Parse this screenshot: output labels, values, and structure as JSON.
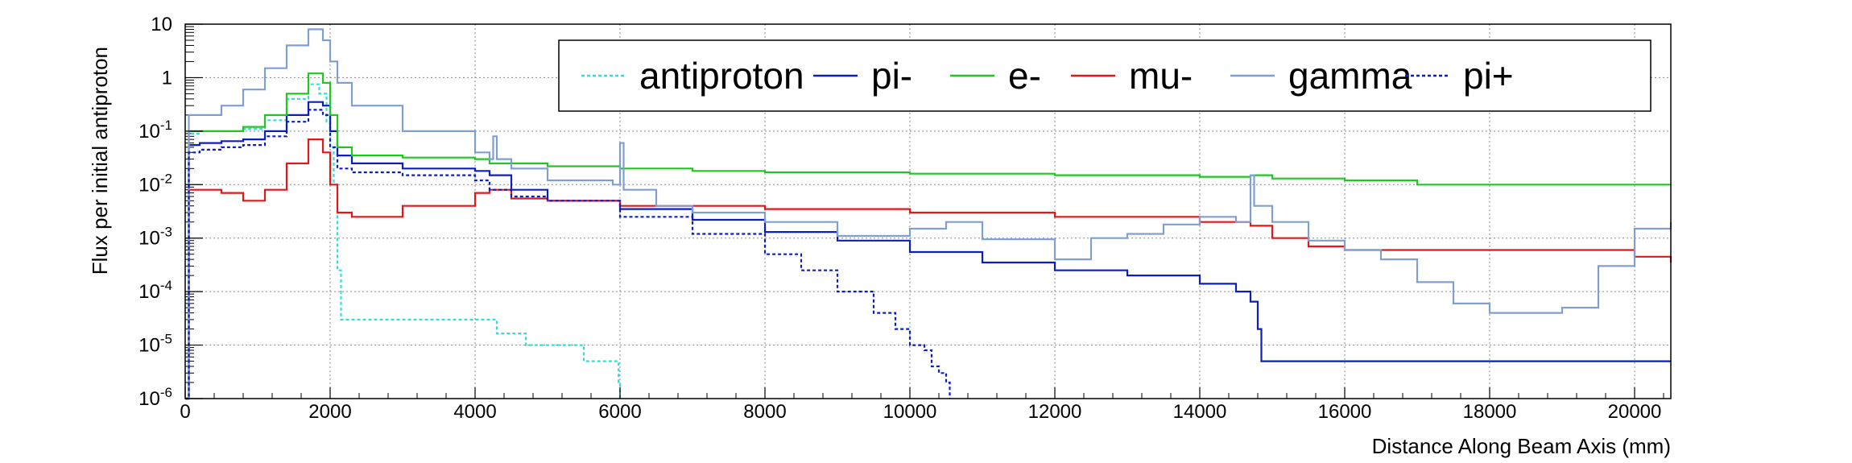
{
  "chart_data": {
    "type": "line",
    "xlabel": "Distance Along Beam Axis (mm)",
    "ylabel": "Flux per initial antiproton",
    "xlim": [
      0,
      20500
    ],
    "ylim": [
      1e-06,
      10
    ],
    "y_scale": "log",
    "grid": true,
    "legend_position": "top-right",
    "x_ticks": [
      0,
      2000,
      4000,
      6000,
      8000,
      10000,
      12000,
      14000,
      16000,
      18000,
      20000
    ],
    "x_tick_labels": [
      "0",
      "2000",
      "4000",
      "6000",
      "8000",
      "10000",
      "12000",
      "14000",
      "16000",
      "18000",
      "20000"
    ],
    "y_ticks": [
      {
        "value": 10,
        "base": "10",
        "exp": ""
      },
      {
        "value": 1,
        "base": "1",
        "exp": ""
      },
      {
        "value": 0.1,
        "base": "10",
        "exp": "-1"
      },
      {
        "value": 0.01,
        "base": "10",
        "exp": "-2"
      },
      {
        "value": 0.001,
        "base": "10",
        "exp": "-3"
      },
      {
        "value": 0.0001,
        "base": "10",
        "exp": "-4"
      },
      {
        "value": 1e-05,
        "base": "10",
        "exp": "-5"
      },
      {
        "value": 1e-06,
        "base": "10",
        "exp": "-6"
      }
    ],
    "series": [
      {
        "name": "antiproton",
        "color": "#33dddd",
        "dash": "dotted",
        "x": [
          0,
          50,
          200,
          500,
          800,
          1100,
          1400,
          1700,
          1850,
          1950,
          2000,
          2050,
          2100,
          2150,
          2200,
          4200,
          4300,
          4700,
          5500,
          5980,
          6000
        ],
        "y": [
          1e-06,
          0.09,
          0.1,
          0.1,
          0.11,
          0.16,
          0.4,
          0.75,
          0.5,
          0.15,
          0.05,
          0.01,
          0.00025,
          3e-05,
          3e-05,
          3e-05,
          1.65e-05,
          1e-05,
          5e-06,
          2e-06,
          1e-06
        ]
      },
      {
        "name": "pi-",
        "color": "#0b1fc0",
        "dash": "solid",
        "x": [
          0,
          50,
          200,
          500,
          800,
          1100,
          1400,
          1700,
          1900,
          2000,
          2100,
          2300,
          3000,
          4000,
          4200,
          4500,
          5000,
          6000,
          7000,
          8000,
          9000,
          10000,
          11000,
          12000,
          13000,
          14000,
          14500,
          14700,
          14800,
          14850,
          16000,
          18000,
          20500
        ],
        "y": [
          1e-06,
          0.055,
          0.06,
          0.065,
          0.07,
          0.1,
          0.2,
          0.35,
          0.3,
          0.1,
          0.035,
          0.025,
          0.02,
          0.018,
          0.015,
          0.008,
          0.005,
          0.0035,
          0.0022,
          0.0013,
          0.0009,
          0.00055,
          0.00035,
          0.00025,
          0.0002,
          0.00014,
          0.0001,
          6.5e-05,
          2e-05,
          5e-06,
          5e-06,
          5e-06,
          5e-06
        ]
      },
      {
        "name": "e-",
        "color": "#1ec81e",
        "dash": "solid",
        "x": [
          0,
          50,
          200,
          500,
          800,
          1100,
          1400,
          1700,
          1900,
          2000,
          2100,
          2300,
          3000,
          4000,
          4200,
          5000,
          6000,
          7000,
          8000,
          10000,
          12000,
          14000,
          14700,
          15000,
          16000,
          17000,
          18000,
          20500
        ],
        "y": [
          1e-06,
          0.1,
          0.1,
          0.1,
          0.12,
          0.2,
          0.5,
          1.2,
          0.8,
          0.2,
          0.05,
          0.035,
          0.032,
          0.03,
          0.025,
          0.022,
          0.02,
          0.018,
          0.017,
          0.016,
          0.015,
          0.014,
          0.015,
          0.013,
          0.012,
          0.01,
          0.01,
          0.01
        ]
      },
      {
        "name": "mu-",
        "color": "#e01818",
        "dash": "solid",
        "x": [
          0,
          50,
          200,
          500,
          800,
          1100,
          1400,
          1700,
          1900,
          2000,
          2100,
          2300,
          3000,
          4000,
          4200,
          4500,
          5000,
          6000,
          8000,
          10000,
          12000,
          14000,
          14700,
          15000,
          15500,
          16000,
          17000,
          18000,
          19500,
          20000,
          20500
        ],
        "y": [
          1e-06,
          0.008,
          0.008,
          0.007,
          0.005,
          0.008,
          0.025,
          0.07,
          0.04,
          0.01,
          0.003,
          0.0025,
          0.004,
          0.007,
          0.008,
          0.0055,
          0.005,
          0.004,
          0.0035,
          0.003,
          0.0025,
          0.002,
          0.0017,
          0.001,
          0.0007,
          0.0006,
          0.0006,
          0.0006,
          0.0006,
          0.00045,
          0.00035
        ]
      },
      {
        "name": "gamma",
        "color": "#7f9fd0",
        "dash": "solid",
        "x": [
          0,
          50,
          200,
          500,
          800,
          1100,
          1400,
          1700,
          1900,
          2000,
          2100,
          2300,
          3000,
          4000,
          4200,
          4250,
          4300,
          4500,
          5000,
          5900,
          6000,
          6050,
          6500,
          7000,
          8000,
          9000,
          10000,
          10500,
          11000,
          12000,
          12500,
          13000,
          13500,
          14000,
          14500,
          14700,
          14750,
          15000,
          15500,
          16000,
          16500,
          17000,
          17500,
          18000,
          18500,
          19000,
          19500,
          20000,
          20500
        ],
        "y": [
          1e-06,
          0.2,
          0.2,
          0.3,
          0.6,
          1.5,
          4,
          8,
          5,
          2,
          0.8,
          0.3,
          0.1,
          0.04,
          0.03,
          0.08,
          0.03,
          0.02,
          0.012,
          0.01,
          0.06,
          0.008,
          0.004,
          0.003,
          0.002,
          0.0011,
          0.0015,
          0.002,
          0.00095,
          0.0004,
          0.001,
          0.0012,
          0.0018,
          0.0025,
          0.002,
          0.015,
          0.004,
          0.002,
          0.0009,
          0.0006,
          0.0004,
          0.00015,
          6e-05,
          4e-05,
          4e-05,
          5e-05,
          0.0003,
          0.0015,
          0.002
        ]
      },
      {
        "name": "pi+",
        "color": "#0b1fc0",
        "dash": "dotted",
        "x": [
          0,
          50,
          200,
          500,
          800,
          1100,
          1400,
          1700,
          1900,
          2000,
          2100,
          2300,
          3000,
          4000,
          4200,
          4500,
          5000,
          6000,
          7000,
          8000,
          8500,
          9000,
          9500,
          9800,
          10000,
          10200,
          10300,
          10400,
          10500,
          10550
        ],
        "y": [
          1e-06,
          0.04,
          0.045,
          0.05,
          0.055,
          0.08,
          0.15,
          0.25,
          0.2,
          0.05,
          0.02,
          0.017,
          0.015,
          0.012,
          0.008,
          0.006,
          0.005,
          0.0025,
          0.0012,
          0.0005,
          0.00025,
          0.0001,
          4e-05,
          2e-05,
          1e-05,
          8e-06,
          4e-06,
          3e-06,
          2e-06,
          1e-06
        ]
      }
    ]
  }
}
